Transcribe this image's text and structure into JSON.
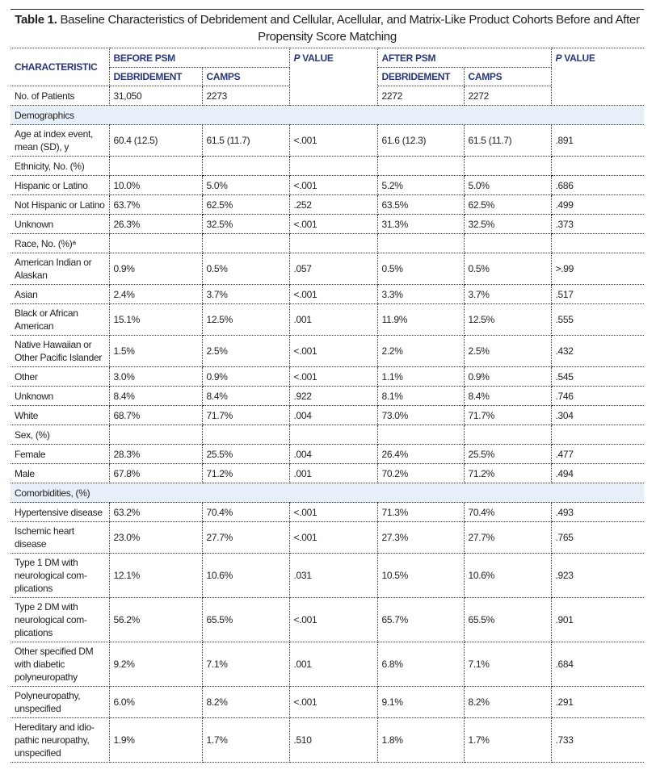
{
  "title": {
    "label": "Table 1.",
    "text": "Baseline Characteristics of Debridement and Cellular, Acellular, and Matrix-Like Product Cohorts Before and After Propensity Score Matching"
  },
  "header": {
    "characteristic": "CHARACTERISTIC",
    "before_psm": "BEFORE PSM",
    "after_psm": "AFTER PSM",
    "p_value_1": "P VALUE",
    "p_value_2": "P VALUE",
    "debridement_1": "DEBRIDEMENT",
    "camps_1": "CAMPS",
    "debridement_2": "DEBRIDEMENT",
    "camps_2": "CAMPS"
  },
  "patients": {
    "label": "No. of Patients",
    "before_deb": "31,050",
    "before_camps": "2273",
    "after_deb": "2272",
    "after_camps": "2272"
  },
  "colors": {
    "header_text": "#2a3778",
    "section_band": "#e7eff8"
  },
  "rows": [
    {
      "type": "section",
      "label": "Demographics"
    },
    {
      "label": "Age at index event, mean (SD), y",
      "v": [
        "60.4 (12.5)",
        "61.5 (11.7)",
        "<.001",
        "61.6 (12.3)",
        "61.5 (11.7)",
        ".891"
      ]
    },
    {
      "type": "group",
      "label": "Ethnicity, No. (%)"
    },
    {
      "label": "Hispanic or Latino",
      "v": [
        "10.0%",
        "5.0%",
        "<.001",
        "5.2%",
        "5.0%",
        ".686"
      ]
    },
    {
      "label": "Not Hispanic or Latino",
      "v": [
        "63.7%",
        "62.5%",
        ".252",
        "63.5%",
        "62.5%",
        ".499"
      ]
    },
    {
      "label": "Unknown",
      "v": [
        "26.3%",
        "32.5%",
        "<.001",
        "31.3%",
        "32.5%",
        ".373"
      ]
    },
    {
      "type": "group",
      "label": "Race, No. (%)ᵃ"
    },
    {
      "label": "American Indian or Alaskan",
      "v": [
        "0.9%",
        "0.5%",
        ".057",
        "0.5%",
        "0.5%",
        ">.99"
      ]
    },
    {
      "label": "Asian",
      "v": [
        "2.4%",
        "3.7%",
        "<.001",
        "3.3%",
        "3.7%",
        ".517"
      ]
    },
    {
      "label": "Black or African American",
      "v": [
        "15.1%",
        "12.5%",
        ".001",
        "11.9%",
        "12.5%",
        ".555"
      ]
    },
    {
      "label": "Native Hawaiian or Other Pacific Islander",
      "v": [
        "1.5%",
        "2.5%",
        "<.001",
        "2.2%",
        "2.5%",
        ".432"
      ]
    },
    {
      "label": "Other",
      "v": [
        "3.0%",
        "0.9%",
        "<.001",
        "1.1%",
        "0.9%",
        ".545"
      ]
    },
    {
      "label": "Unknown",
      "v": [
        "8.4%",
        "8.4%",
        ".922",
        "8.1%",
        "8.4%",
        ".746"
      ]
    },
    {
      "label": "White",
      "v": [
        "68.7%",
        "71.7%",
        ".004",
        "73.0%",
        "71.7%",
        ".304"
      ]
    },
    {
      "type": "group",
      "label": "Sex, (%)"
    },
    {
      "label": "Female",
      "v": [
        "28.3%",
        "25.5%",
        ".004",
        "26.4%",
        "25.5%",
        ".477"
      ]
    },
    {
      "label": "Male",
      "v": [
        "67.8%",
        "71.2%",
        ".001",
        "70.2%",
        "71.2%",
        ".494"
      ]
    },
    {
      "type": "section",
      "label": "Comorbidities, (%)"
    },
    {
      "label": "Hypertensive disease",
      "v": [
        "63.2%",
        "70.4%",
        "<.001",
        "71.3%",
        "70.4%",
        ".493"
      ]
    },
    {
      "label": "Ischemic heart disease",
      "v": [
        "23.0%",
        "27.7%",
        "<.001",
        "27.3%",
        "27.7%",
        ".765"
      ]
    },
    {
      "label": "Type 1 DM with neurological com-plications",
      "v": [
        "12.1%",
        "10.6%",
        ".031",
        "10.5%",
        "10.6%",
        ".923"
      ]
    },
    {
      "label": "Type 2 DM with neurological com-plications",
      "v": [
        "56.2%",
        "65.5%",
        "<.001",
        "65.7%",
        "65.5%",
        ".901"
      ]
    },
    {
      "label": "Other specified DM with diabetic polyneuropathy",
      "v": [
        "9.2%",
        "7.1%",
        ".001",
        "6.8%",
        "7.1%",
        ".684"
      ]
    },
    {
      "label": "Polyneuropathy, unspecified",
      "v": [
        "6.0%",
        "8.2%",
        "<.001",
        "9.1%",
        "8.2%",
        ".291"
      ]
    },
    {
      "label": "Hereditary and idio-pathic neuropathy, unspecified",
      "v": [
        "1.9%",
        "1.7%",
        ".510",
        "1.8%",
        "1.7%",
        ".733"
      ]
    }
  ]
}
